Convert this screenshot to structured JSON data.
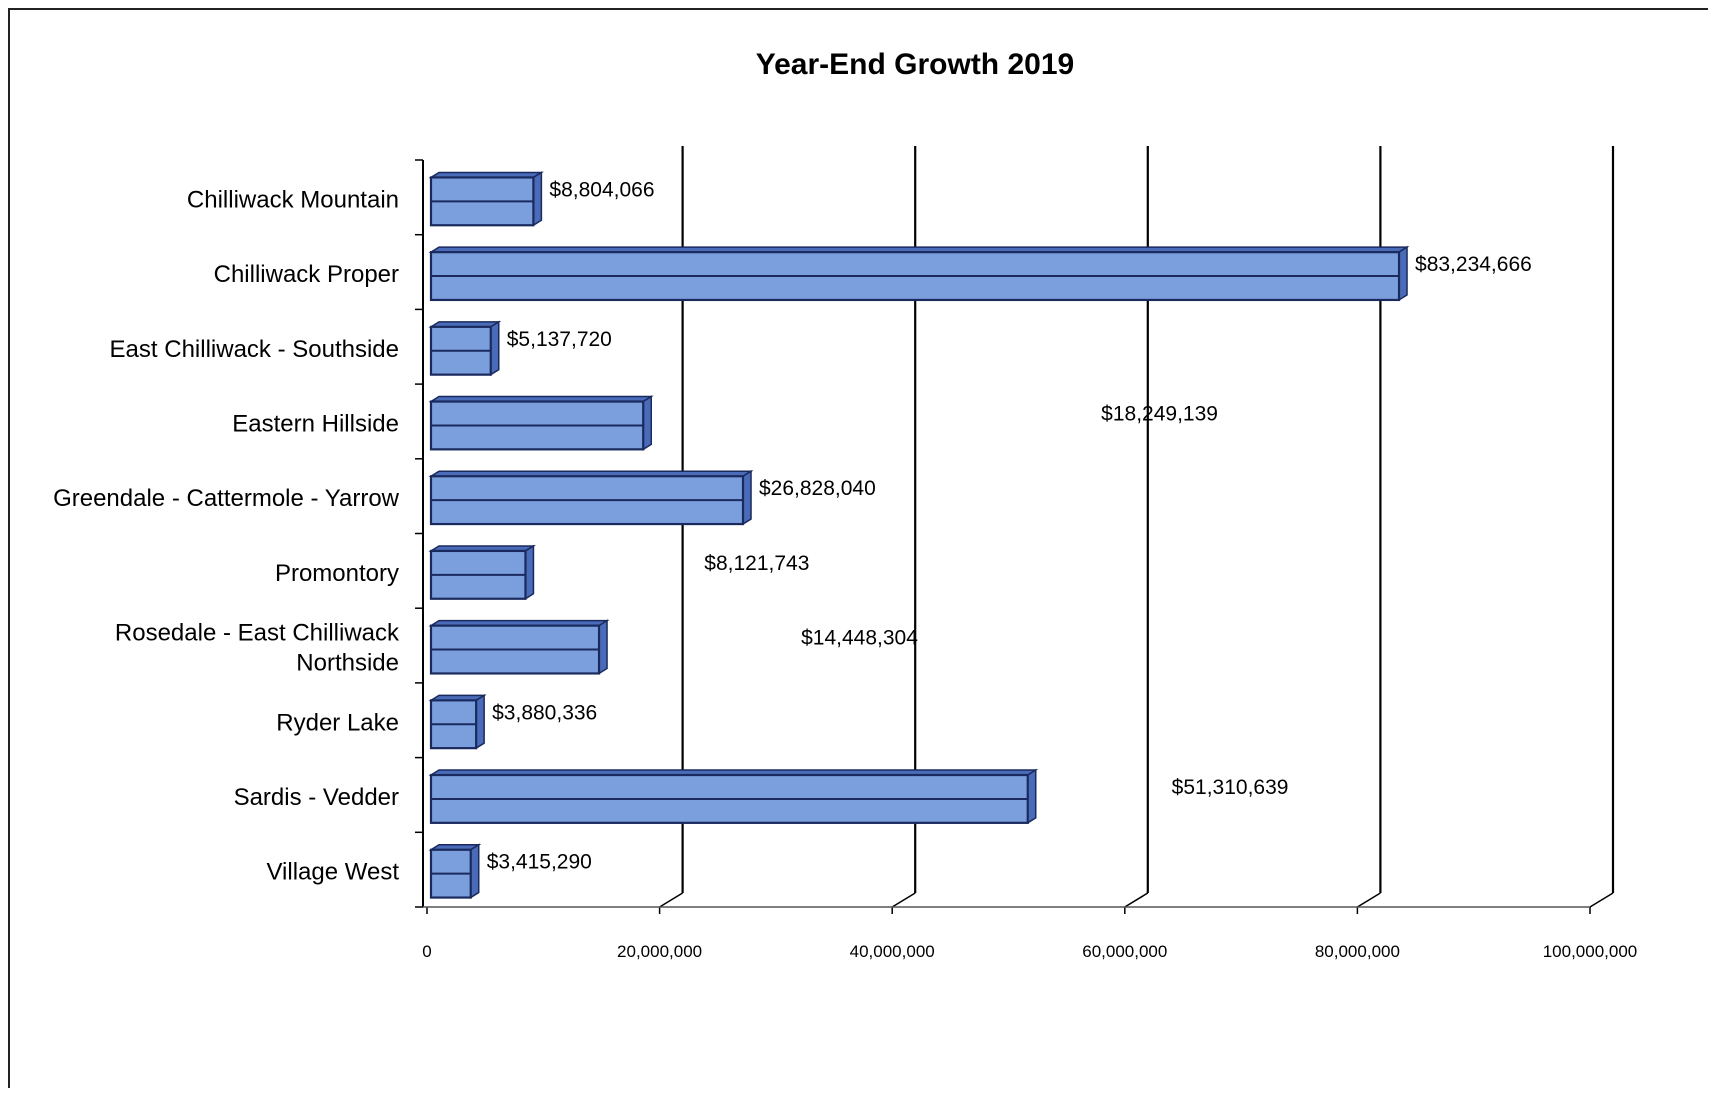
{
  "chart_data": {
    "type": "bar",
    "orientation": "horizontal",
    "title": "Year-End Growth 2019",
    "xlabel": "",
    "ylabel": "",
    "xlim": [
      0,
      100000000
    ],
    "ticks": [
      {
        "value": 0,
        "label": "0"
      },
      {
        "value": 20000000,
        "label": "20,000,000"
      },
      {
        "value": 40000000,
        "label": "40,000,000"
      },
      {
        "value": 60000000,
        "label": "60,000,000"
      },
      {
        "value": 80000000,
        "label": "80,000,000"
      },
      {
        "value": 100000000,
        "label": "100,000,000"
      }
    ],
    "categories": [
      [
        "Chilliwack Mountain"
      ],
      [
        "Chilliwack Proper"
      ],
      [
        "East Chilliwack - Southside"
      ],
      [
        "Eastern Hillside"
      ],
      [
        "Greendale - Cattermole - Yarrow"
      ],
      [
        "Promontory"
      ],
      [
        "Rosedale - East Chilliwack",
        "Northside"
      ],
      [
        "Ryder Lake"
      ],
      [
        "Sardis - Vedder"
      ],
      [
        "Village West"
      ]
    ],
    "values": [
      8804066,
      83234666,
      5137720,
      18249139,
      26828040,
      8121743,
      14448304,
      3880336,
      51310639,
      3415290
    ],
    "data_labels": [
      "$8,804,066",
      "$83,234,666",
      "$5,137,720",
      "$18,249,139",
      "$26,828,040",
      "$8,121,743",
      "$14,448,304",
      "$3,880,336",
      "$51,310,639",
      "$3,415,290"
    ],
    "label_offsets": [
      0,
      0,
      0,
      38000000,
      0,
      14000000,
      16000000,
      0,
      11000000,
      0
    ],
    "grid": true,
    "legend": "none",
    "colors": {
      "bar": "#7b9fdd",
      "bar_edge": "#1a2a5e",
      "bar_side": "#4a6bb8",
      "grid": "#000000"
    }
  }
}
